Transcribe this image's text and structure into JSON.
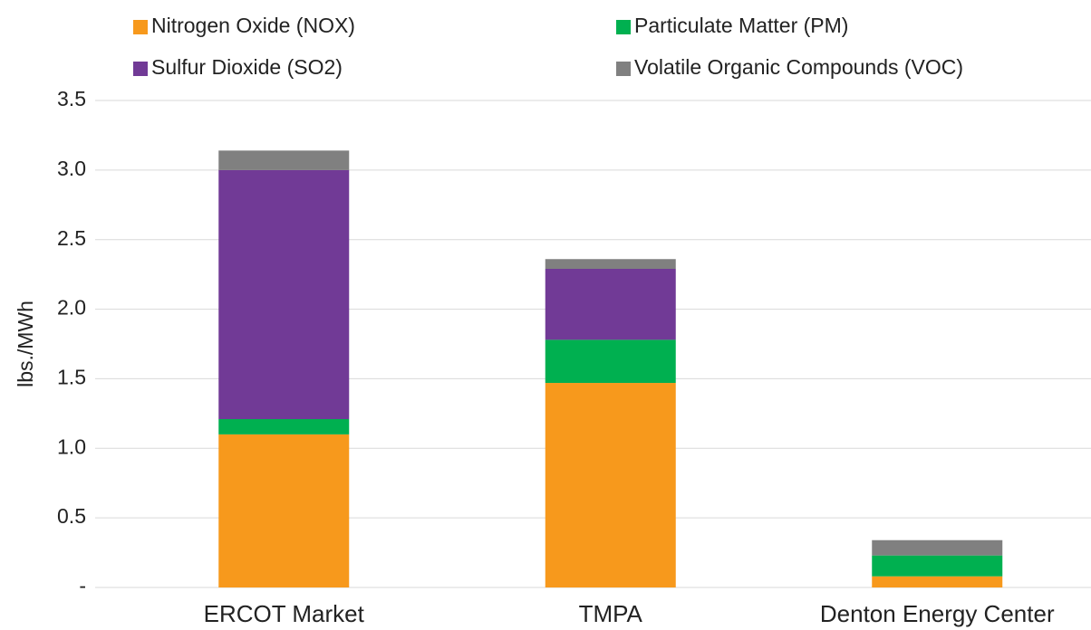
{
  "chart_data": {
    "type": "stacked_bar",
    "y_label": "lbs./MWh",
    "categories": [
      "ERCOT Market",
      "TMPA",
      "Denton Energy Center"
    ],
    "series": [
      {
        "name": "Nitrogen Oxide (NOX)",
        "color": "#f7991c",
        "values": [
          1.1,
          1.47,
          0.08
        ]
      },
      {
        "name": "Particulate Matter (PM)",
        "color": "#00b050",
        "values": [
          0.11,
          0.31,
          0.15
        ]
      },
      {
        "name": "Sulfur Dioxide (SO2)",
        "color": "#713a96",
        "values": [
          1.79,
          0.51,
          0
        ]
      },
      {
        "name": "Volatile Organic Compounds (VOC)",
        "color": "#808080",
        "values": [
          0.14,
          0.07,
          0.11
        ]
      }
    ],
    "ylim": [
      0,
      3.5
    ],
    "yticks": [
      {
        "value": 0,
        "label": "-"
      },
      0.5,
      {
        "value": 1,
        "label": "1.0"
      },
      1.5,
      {
        "value": 2,
        "label": "2.0"
      },
      2.5,
      {
        "value": 3,
        "label": "3.0"
      },
      3.5
    ],
    "grid": true,
    "legend": "top"
  }
}
